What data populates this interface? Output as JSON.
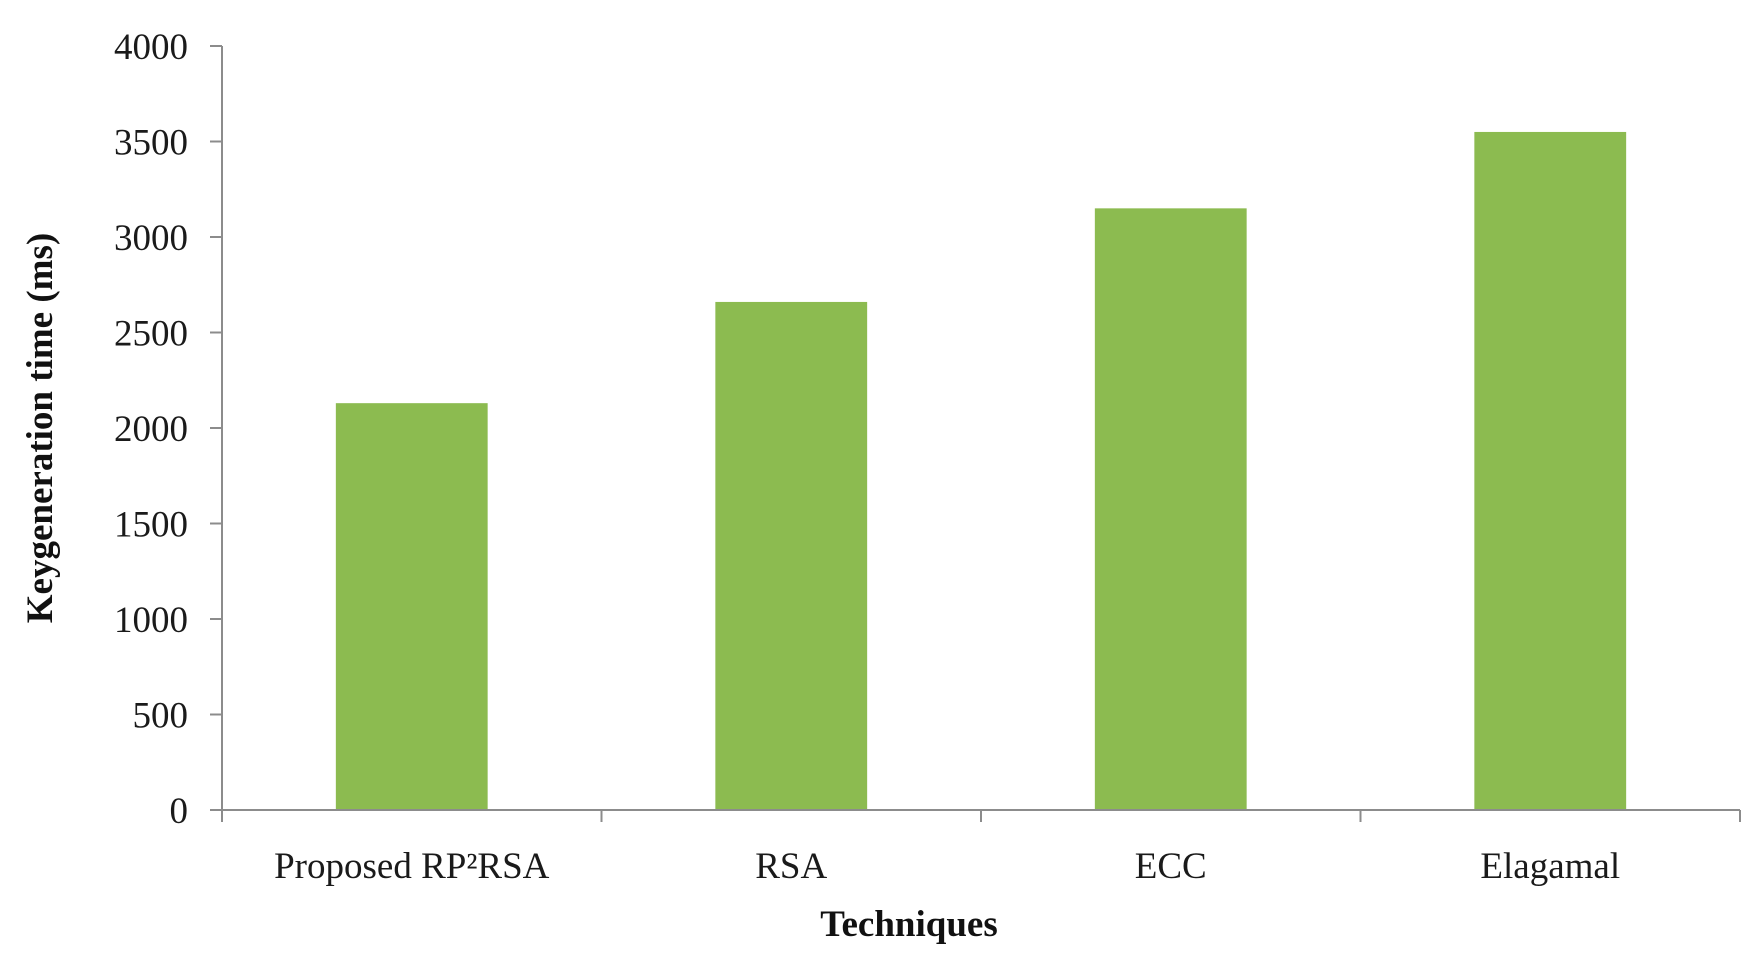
{
  "chart_data": {
    "type": "bar",
    "categories": [
      "Proposed RP²RSA",
      "RSA",
      "ECC",
      "Elagamal"
    ],
    "values": [
      2130,
      2660,
      3150,
      3550
    ],
    "xlabel": "Techniques",
    "ylabel": "Keygeneration time (ms)",
    "ylim": [
      0,
      4000
    ],
    "yticks": [
      0,
      500,
      1000,
      1500,
      2000,
      2500,
      3000,
      3500,
      4000
    ],
    "grid": false,
    "legend": "none",
    "bar_color": "#8cbb50",
    "axis_color": "#8c8c8c"
  }
}
